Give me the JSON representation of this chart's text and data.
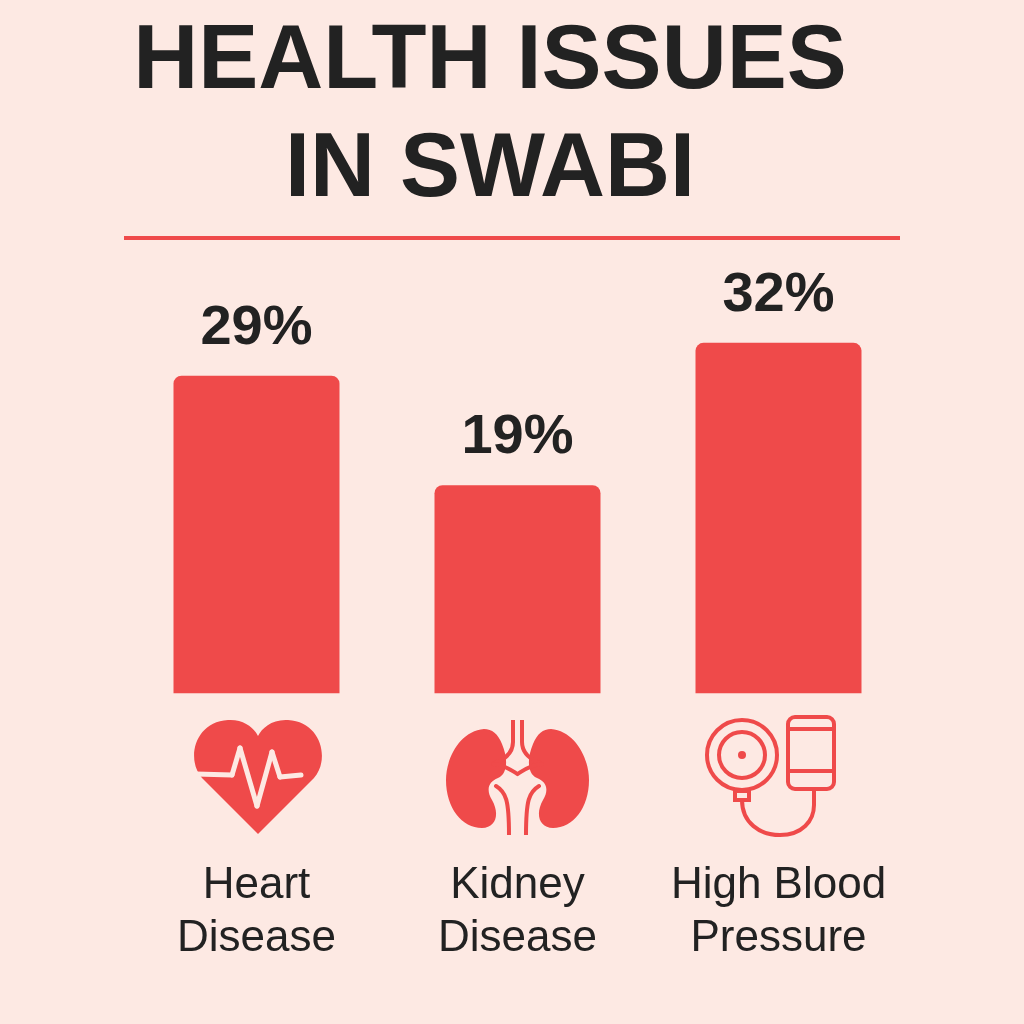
{
  "chart_data": {
    "type": "bar",
    "title": "HEALTH ISSUES IN SWABI",
    "categories": [
      "Heart Disease",
      "Kidney Disease",
      "High Blood Pressure"
    ],
    "values": [
      29,
      19,
      32
    ],
    "value_labels": [
      "29%",
      "19%",
      "32%"
    ],
    "color": "#ef4a4a",
    "grid": false,
    "legend": false,
    "tick_labels": "x"
  }
}
